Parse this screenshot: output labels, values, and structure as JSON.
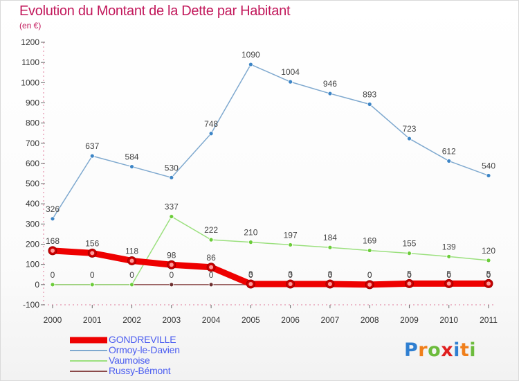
{
  "chart_data": {
    "type": "line",
    "title": "Evolution du Montant de la Dette par Habitant",
    "subtitle": "(en €)",
    "x": [
      "2000",
      "2001",
      "2002",
      "2003",
      "2004",
      "2005",
      "2006",
      "2007",
      "2008",
      "2009",
      "2010",
      "2011"
    ],
    "ylim": [
      -100,
      1200
    ],
    "yticks": [
      -100,
      0,
      100,
      200,
      300,
      400,
      500,
      600,
      700,
      800,
      900,
      1000,
      1100,
      1200
    ],
    "grid": false,
    "legend_position": "bottom-left",
    "series": [
      {
        "name": "GONDREVILLE",
        "color": "#ee0000",
        "values": [
          168,
          156,
          118,
          98,
          86,
          3,
          3,
          3,
          0,
          5,
          5,
          5
        ],
        "labels": [
          "168",
          "156",
          "118",
          "98",
          "86",
          "3",
          "3",
          "3",
          "0",
          "5",
          "5",
          "5"
        ]
      },
      {
        "name": "Ormoy-le-Davien",
        "color": "#7fa9cf",
        "marker": "#3d85c6",
        "values": [
          326,
          637,
          584,
          530,
          748,
          1090,
          1004,
          946,
          893,
          723,
          612,
          540
        ],
        "labels": [
          "326",
          "637",
          "584",
          "530",
          "748",
          "1090",
          "1004",
          "946",
          "893",
          "723",
          "612",
          "540"
        ]
      },
      {
        "name": "Vaumoise",
        "color": "#9be07e",
        "marker": "#6ccc3a",
        "values": [
          0,
          0,
          0,
          337,
          222,
          210,
          197,
          184,
          169,
          155,
          139,
          120
        ],
        "labels": [
          "0",
          "0",
          "0",
          "337",
          "222",
          "210",
          "197",
          "184",
          "169",
          "155",
          "139",
          "120"
        ]
      },
      {
        "name": "Russy-Bémont",
        "color": "#8b4a4a",
        "marker": "#6d2f2f",
        "values": [
          0,
          0,
          0,
          0,
          0,
          0,
          0,
          0,
          0,
          0,
          0,
          0
        ],
        "labels": [
          "0",
          "0",
          "0",
          "0",
          "0",
          "0",
          "0",
          "0",
          "0",
          "0",
          "0",
          "0"
        ]
      }
    ]
  },
  "logo": {
    "text": "Proxiti",
    "letter_colors": [
      "#2f7fd1",
      "#f07f1a",
      "#6cbb3c",
      "#e02020",
      "#2f7fd1",
      "#f07f1a",
      "#6cbb3c"
    ]
  }
}
